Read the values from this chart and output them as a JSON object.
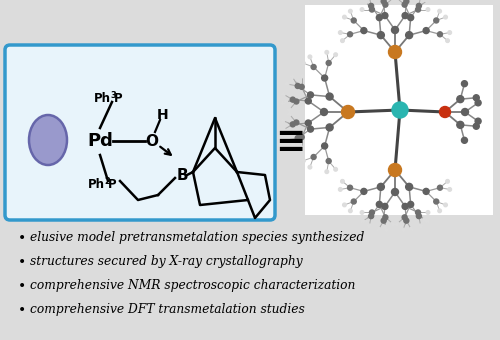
{
  "bg_color": "#dcdcdc",
  "box_facecolor": "#e8f4fb",
  "box_edge_color": "#3399cc",
  "bullet_points": [
    "elusive model pretransmetalation species synthesized",
    "structures secured by X-ray crystallography",
    "comprehensive NMR spectroscopic characterization",
    "comprehensive DFT transmetalation studies"
  ],
  "bullet_fontsize": 8.8,
  "pd_ellipse_color": "#9999cc",
  "pd_ellipse_edge": "#6666aa",
  "teal_color": "#2ab5b0",
  "orange_color": "#c87820",
  "red_color": "#c83010",
  "bond_color": "#333333",
  "carbon_color": "#555555",
  "xtal_bg": "#ffffff"
}
